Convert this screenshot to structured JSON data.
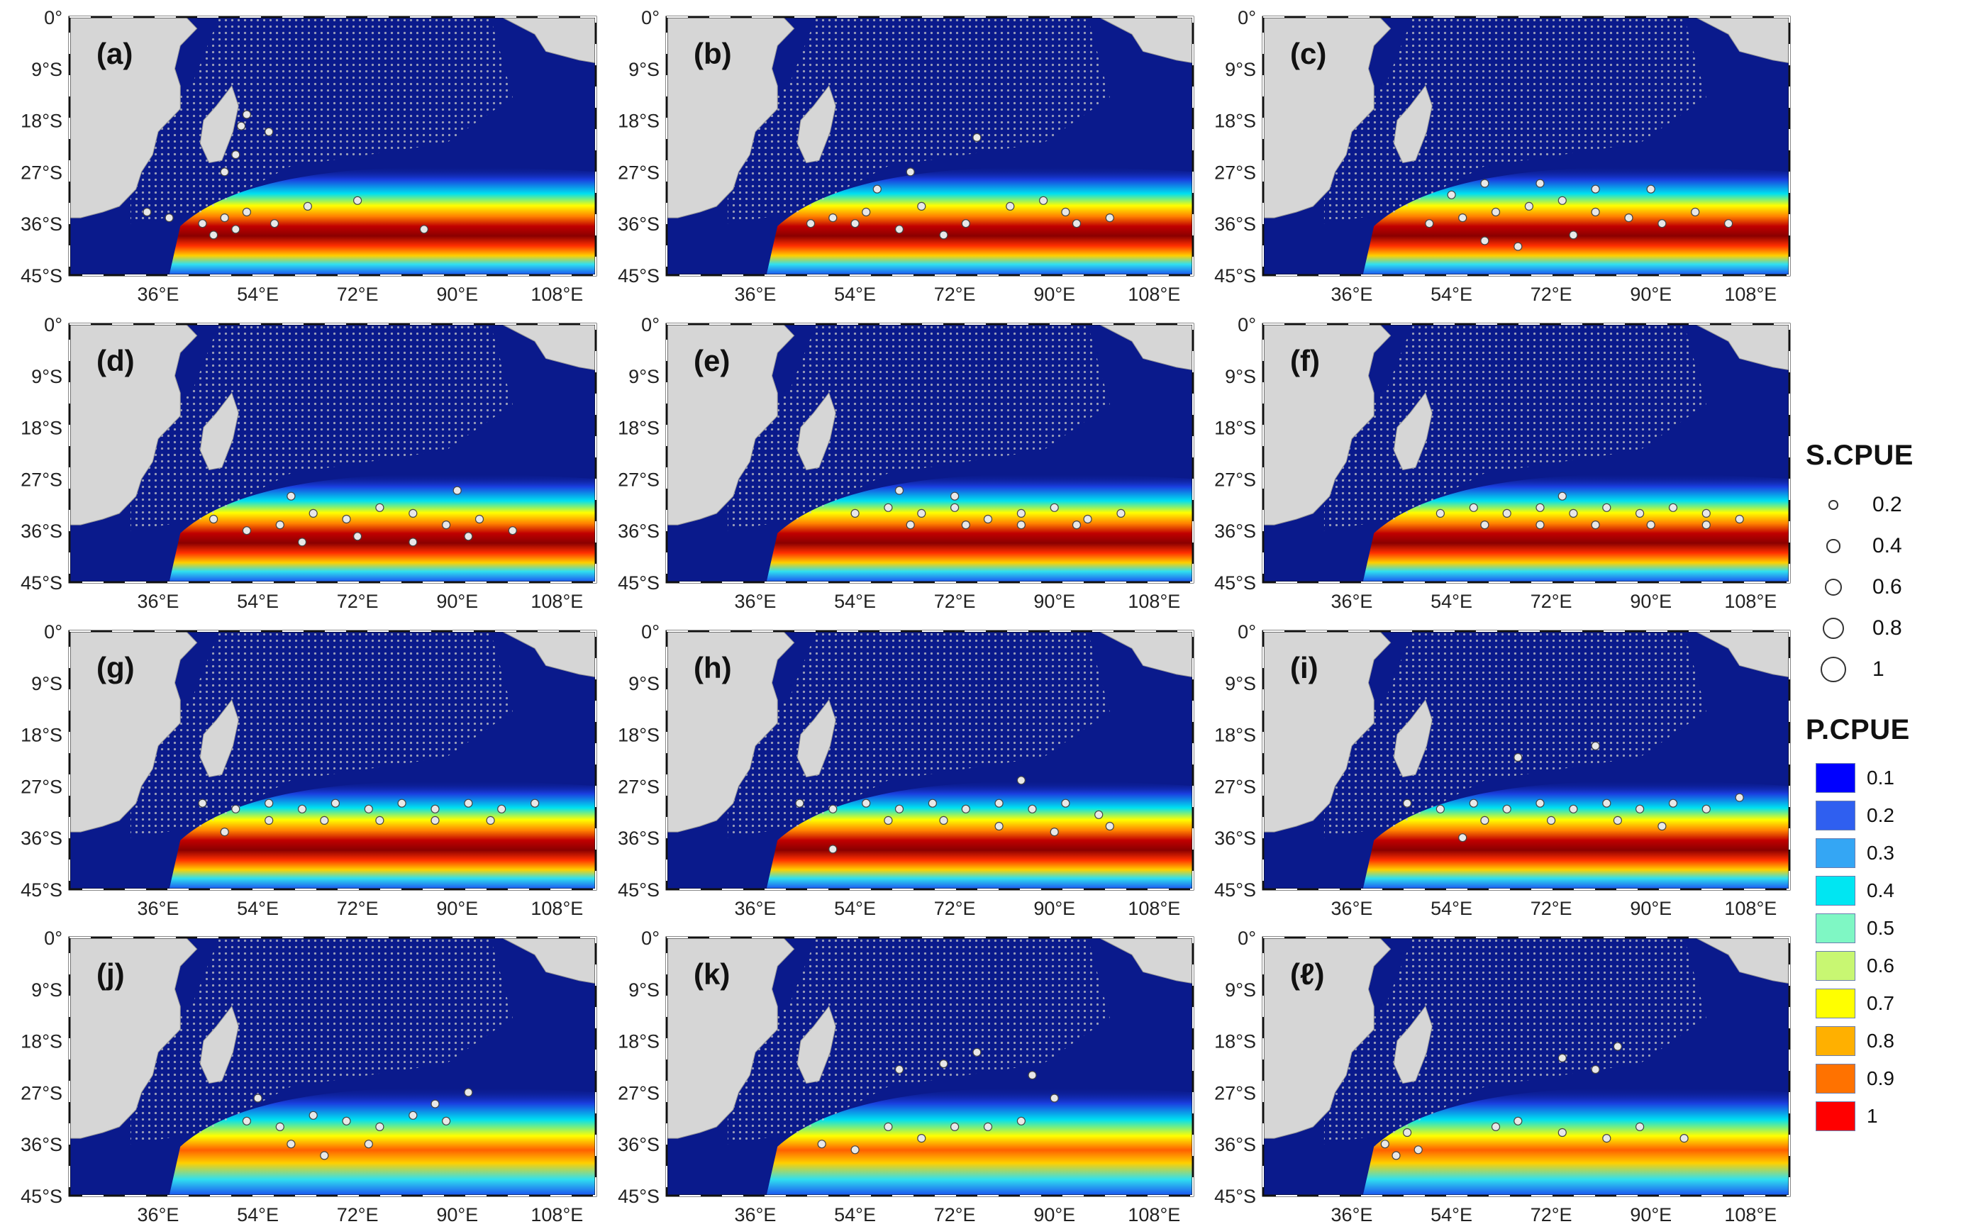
{
  "figure": {
    "lat_ticks": [
      "0°",
      "9°S",
      "18°S",
      "27°S",
      "36°S",
      "45°S"
    ],
    "lon_ticks": [
      "36°E",
      "54°E",
      "72°E",
      "90°E",
      "108°E"
    ],
    "panels": [
      {
        "label": "(a)",
        "points": [
          [
            34,
            -34
          ],
          [
            38,
            -35
          ],
          [
            44,
            -36
          ],
          [
            48,
            -35
          ],
          [
            52,
            -34
          ],
          [
            46,
            -38
          ],
          [
            50,
            -37
          ],
          [
            57,
            -36
          ],
          [
            63,
            -33
          ],
          [
            72,
            -32
          ],
          [
            84,
            -37
          ],
          [
            48,
            -27
          ],
          [
            50,
            -24
          ],
          [
            51,
            -19
          ],
          [
            56,
            -20
          ],
          [
            52,
            -17
          ]
        ]
      },
      {
        "label": "(b)",
        "points": [
          [
            46,
            -36
          ],
          [
            50,
            -35
          ],
          [
            54,
            -36
          ],
          [
            56,
            -34
          ],
          [
            62,
            -37
          ],
          [
            66,
            -33
          ],
          [
            70,
            -38
          ],
          [
            74,
            -36
          ],
          [
            82,
            -33
          ],
          [
            88,
            -32
          ],
          [
            92,
            -34
          ],
          [
            94,
            -36
          ],
          [
            100,
            -35
          ],
          [
            76,
            -21
          ],
          [
            64,
            -27
          ],
          [
            58,
            -30
          ]
        ]
      },
      {
        "label": "(c)",
        "points": [
          [
            50,
            -36
          ],
          [
            56,
            -35
          ],
          [
            62,
            -34
          ],
          [
            68,
            -33
          ],
          [
            74,
            -32
          ],
          [
            80,
            -34
          ],
          [
            86,
            -35
          ],
          [
            92,
            -36
          ],
          [
            98,
            -34
          ],
          [
            104,
            -36
          ],
          [
            60,
            -29
          ],
          [
            70,
            -29
          ],
          [
            80,
            -30
          ],
          [
            90,
            -30
          ],
          [
            60,
            -39
          ],
          [
            66,
            -40
          ],
          [
            76,
            -38
          ],
          [
            54,
            -31
          ]
        ]
      },
      {
        "label": "(d)",
        "points": [
          [
            46,
            -34
          ],
          [
            52,
            -36
          ],
          [
            58,
            -35
          ],
          [
            64,
            -33
          ],
          [
            70,
            -34
          ],
          [
            76,
            -32
          ],
          [
            82,
            -33
          ],
          [
            88,
            -35
          ],
          [
            94,
            -34
          ],
          [
            100,
            -36
          ],
          [
            62,
            -38
          ],
          [
            72,
            -37
          ],
          [
            82,
            -38
          ],
          [
            92,
            -37
          ],
          [
            60,
            -30
          ],
          [
            90,
            -29
          ]
        ]
      },
      {
        "label": "(e)",
        "points": [
          [
            54,
            -33
          ],
          [
            60,
            -32
          ],
          [
            66,
            -33
          ],
          [
            72,
            -32
          ],
          [
            78,
            -34
          ],
          [
            84,
            -33
          ],
          [
            90,
            -32
          ],
          [
            96,
            -34
          ],
          [
            102,
            -33
          ],
          [
            64,
            -35
          ],
          [
            74,
            -35
          ],
          [
            84,
            -35
          ],
          [
            94,
            -35
          ],
          [
            62,
            -29
          ],
          [
            72,
            -30
          ]
        ]
      },
      {
        "label": "(f)",
        "points": [
          [
            52,
            -33
          ],
          [
            58,
            -32
          ],
          [
            64,
            -33
          ],
          [
            70,
            -32
          ],
          [
            76,
            -33
          ],
          [
            82,
            -32
          ],
          [
            88,
            -33
          ],
          [
            94,
            -32
          ],
          [
            100,
            -33
          ],
          [
            106,
            -34
          ],
          [
            60,
            -35
          ],
          [
            70,
            -35
          ],
          [
            80,
            -35
          ],
          [
            90,
            -35
          ],
          [
            100,
            -35
          ],
          [
            74,
            -30
          ]
        ]
      },
      {
        "label": "(g)",
        "points": [
          [
            44,
            -30
          ],
          [
            50,
            -31
          ],
          [
            56,
            -30
          ],
          [
            62,
            -31
          ],
          [
            68,
            -30
          ],
          [
            74,
            -31
          ],
          [
            80,
            -30
          ],
          [
            86,
            -31
          ],
          [
            92,
            -30
          ],
          [
            98,
            -31
          ],
          [
            104,
            -30
          ],
          [
            56,
            -33
          ],
          [
            66,
            -33
          ],
          [
            76,
            -33
          ],
          [
            86,
            -33
          ],
          [
            96,
            -33
          ],
          [
            48,
            -35
          ]
        ]
      },
      {
        "label": "(h)",
        "points": [
          [
            44,
            -30
          ],
          [
            50,
            -31
          ],
          [
            56,
            -30
          ],
          [
            62,
            -31
          ],
          [
            68,
            -30
          ],
          [
            74,
            -31
          ],
          [
            80,
            -30
          ],
          [
            86,
            -31
          ],
          [
            92,
            -30
          ],
          [
            98,
            -32
          ],
          [
            60,
            -33
          ],
          [
            70,
            -33
          ],
          [
            80,
            -34
          ],
          [
            90,
            -35
          ],
          [
            100,
            -34
          ],
          [
            84,
            -26
          ],
          [
            50,
            -38
          ]
        ]
      },
      {
        "label": "(i)",
        "points": [
          [
            46,
            -30
          ],
          [
            52,
            -31
          ],
          [
            58,
            -30
          ],
          [
            64,
            -31
          ],
          [
            70,
            -30
          ],
          [
            76,
            -31
          ],
          [
            82,
            -30
          ],
          [
            88,
            -31
          ],
          [
            94,
            -30
          ],
          [
            100,
            -31
          ],
          [
            106,
            -29
          ],
          [
            60,
            -33
          ],
          [
            72,
            -33
          ],
          [
            84,
            -33
          ],
          [
            92,
            -34
          ],
          [
            66,
            -22
          ],
          [
            80,
            -20
          ],
          [
            56,
            -36
          ]
        ]
      },
      {
        "label": "(j)",
        "points": [
          [
            52,
            -32
          ],
          [
            58,
            -33
          ],
          [
            64,
            -31
          ],
          [
            70,
            -32
          ],
          [
            76,
            -33
          ],
          [
            82,
            -31
          ],
          [
            88,
            -32
          ],
          [
            60,
            -36
          ],
          [
            66,
            -38
          ],
          [
            74,
            -36
          ],
          [
            92,
            -27
          ],
          [
            86,
            -29
          ],
          [
            54,
            -28
          ]
        ]
      },
      {
        "label": "(k)",
        "points": [
          [
            48,
            -36
          ],
          [
            54,
            -37
          ],
          [
            60,
            -33
          ],
          [
            66,
            -35
          ],
          [
            72,
            -33
          ],
          [
            78,
            -33
          ],
          [
            84,
            -32
          ],
          [
            62,
            -23
          ],
          [
            70,
            -22
          ],
          [
            76,
            -20
          ],
          [
            86,
            -24
          ],
          [
            90,
            -28
          ]
        ]
      },
      {
        "label": "(ℓ)",
        "points": [
          [
            42,
            -36
          ],
          [
            44,
            -38
          ],
          [
            46,
            -34
          ],
          [
            48,
            -37
          ],
          [
            62,
            -33
          ],
          [
            66,
            -32
          ],
          [
            74,
            -34
          ],
          [
            82,
            -35
          ],
          [
            88,
            -33
          ],
          [
            96,
            -35
          ],
          [
            84,
            -19
          ],
          [
            80,
            -23
          ],
          [
            74,
            -21
          ]
        ]
      }
    ]
  },
  "legend": {
    "scpue_title": "S.CPUE",
    "scpue_items": [
      {
        "value": "0.2",
        "size": 0.2
      },
      {
        "value": "0.4",
        "size": 0.4
      },
      {
        "value": "0.6",
        "size": 0.6
      },
      {
        "value": "0.8",
        "size": 0.8
      },
      {
        "value": "1",
        "size": 1
      }
    ],
    "pcpue_title": "P.CPUE",
    "pcpue_items": [
      {
        "value": "0.1",
        "color": "#0000ff"
      },
      {
        "value": "0.2",
        "color": "#2f5ff0"
      },
      {
        "value": "0.3",
        "color": "#34a6f4"
      },
      {
        "value": "0.4",
        "color": "#00e6f2"
      },
      {
        "value": "0.5",
        "color": "#7ff7c4"
      },
      {
        "value": "0.6",
        "color": "#c8f772"
      },
      {
        "value": "0.7",
        "color": "#ffff00"
      },
      {
        "value": "0.8",
        "color": "#ffb000"
      },
      {
        "value": "0.9",
        "color": "#ff7200"
      },
      {
        "value": "1",
        "color": "#ff0000"
      }
    ]
  },
  "colors": {
    "ocean": "#0a1a8c",
    "land": "#d6d6d6",
    "frame": "#111111",
    "grid_dots": "#c8c8c8"
  }
}
